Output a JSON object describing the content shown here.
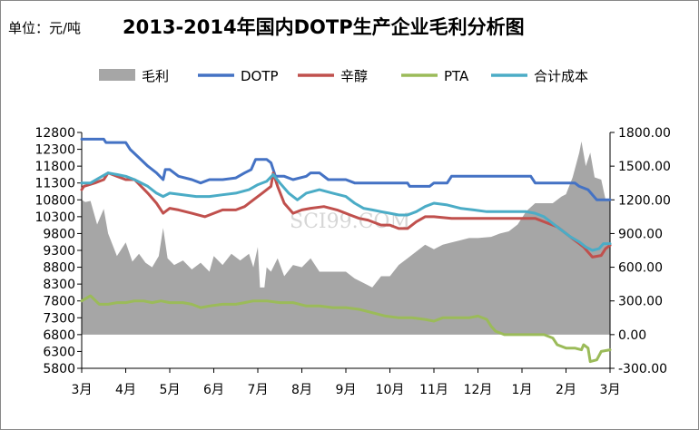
{
  "header": {
    "unit": "单位：元/吨",
    "title": "2013-2014年国内DOTP生产企业毛利分析图"
  },
  "watermark": {
    "text": "SCI99.COM"
  },
  "chart_data": {
    "type": "line",
    "title": "2013-2014年国内DOTP生产企业毛利分析图",
    "unit": "单位：元/吨",
    "legend_position": "top",
    "grid": false,
    "x_labels": [
      "3月",
      "4月",
      "5月",
      "6月",
      "7月",
      "8月",
      "9月",
      "10月",
      "11月",
      "12月",
      "1月",
      "2月",
      "3月"
    ],
    "y_left": {
      "ticks": [
        5800,
        6300,
        6800,
        7300,
        7800,
        8300,
        8800,
        9300,
        9800,
        10300,
        10800,
        11300,
        11800,
        12300,
        12800
      ],
      "range": [
        5800,
        12800
      ]
    },
    "y_right": {
      "ticks": [
        "-300.00",
        "0.00",
        "300.00",
        "600.00",
        "900.00",
        "1200.00",
        "1500.00",
        "1800.00"
      ],
      "range": [
        -300,
        1800
      ]
    },
    "series": [
      {
        "name": "毛利",
        "kind": "area",
        "axis": "right",
        "color": "#a6a6a6",
        "points": [
          [
            0,
            1200
          ],
          [
            0.08,
            1180
          ],
          [
            0.2,
            1190
          ],
          [
            0.35,
            980
          ],
          [
            0.5,
            1120
          ],
          [
            0.6,
            900
          ],
          [
            0.8,
            700
          ],
          [
            1.0,
            820
          ],
          [
            1.15,
            650
          ],
          [
            1.3,
            720
          ],
          [
            1.45,
            640
          ],
          [
            1.6,
            600
          ],
          [
            1.75,
            700
          ],
          [
            1.85,
            950
          ],
          [
            1.95,
            680
          ],
          [
            2.1,
            620
          ],
          [
            2.3,
            660
          ],
          [
            2.5,
            580
          ],
          [
            2.7,
            640
          ],
          [
            2.9,
            560
          ],
          [
            3.0,
            700
          ],
          [
            3.2,
            620
          ],
          [
            3.4,
            720
          ],
          [
            3.6,
            660
          ],
          [
            3.8,
            720
          ],
          [
            3.9,
            600
          ],
          [
            4.0,
            780
          ],
          [
            4.05,
            420
          ],
          [
            4.15,
            420
          ],
          [
            4.2,
            600
          ],
          [
            4.3,
            560
          ],
          [
            4.45,
            680
          ],
          [
            4.6,
            520
          ],
          [
            4.8,
            620
          ],
          [
            5.0,
            600
          ],
          [
            5.2,
            680
          ],
          [
            5.4,
            560
          ],
          [
            5.6,
            560
          ],
          [
            5.8,
            560
          ],
          [
            6.0,
            560
          ],
          [
            6.2,
            500
          ],
          [
            6.4,
            460
          ],
          [
            6.6,
            420
          ],
          [
            6.8,
            520
          ],
          [
            7.0,
            520
          ],
          [
            7.2,
            620
          ],
          [
            7.4,
            680
          ],
          [
            7.6,
            740
          ],
          [
            7.8,
            800
          ],
          [
            8.0,
            760
          ],
          [
            8.2,
            800
          ],
          [
            8.4,
            820
          ],
          [
            8.6,
            840
          ],
          [
            8.8,
            860
          ],
          [
            9.0,
            860
          ],
          [
            9.3,
            870
          ],
          [
            9.5,
            900
          ],
          [
            9.7,
            920
          ],
          [
            9.9,
            980
          ],
          [
            10.1,
            1100
          ],
          [
            10.3,
            1170
          ],
          [
            10.5,
            1170
          ],
          [
            10.7,
            1170
          ],
          [
            10.9,
            1230
          ],
          [
            11.0,
            1250
          ],
          [
            11.15,
            1400
          ],
          [
            11.3,
            1620
          ],
          [
            11.35,
            1720
          ],
          [
            11.45,
            1500
          ],
          [
            11.55,
            1620
          ],
          [
            11.65,
            1400
          ],
          [
            11.8,
            1380
          ],
          [
            11.9,
            1200
          ],
          [
            12.0,
            1200
          ]
        ]
      },
      {
        "name": "DOTP",
        "kind": "line",
        "axis": "left",
        "color": "#4472c4",
        "points": [
          [
            0,
            12600
          ],
          [
            0.5,
            12600
          ],
          [
            0.55,
            12500
          ],
          [
            1.0,
            12500
          ],
          [
            1.1,
            12300
          ],
          [
            1.3,
            12050
          ],
          [
            1.5,
            11800
          ],
          [
            1.7,
            11600
          ],
          [
            1.85,
            11400
          ],
          [
            1.9,
            11700
          ],
          [
            2.0,
            11700
          ],
          [
            2.2,
            11500
          ],
          [
            2.5,
            11400
          ],
          [
            2.7,
            11300
          ],
          [
            2.9,
            11400
          ],
          [
            3.2,
            11400
          ],
          [
            3.5,
            11450
          ],
          [
            3.7,
            11600
          ],
          [
            3.85,
            11700
          ],
          [
            3.95,
            12000
          ],
          [
            4.2,
            12000
          ],
          [
            4.3,
            11900
          ],
          [
            4.4,
            11500
          ],
          [
            4.6,
            11500
          ],
          [
            4.8,
            11400
          ],
          [
            5.1,
            11500
          ],
          [
            5.2,
            11600
          ],
          [
            5.4,
            11600
          ],
          [
            5.6,
            11400
          ],
          [
            6.0,
            11400
          ],
          [
            6.2,
            11300
          ],
          [
            7.4,
            11300
          ],
          [
            7.45,
            11200
          ],
          [
            7.9,
            11200
          ],
          [
            8.0,
            11300
          ],
          [
            8.3,
            11300
          ],
          [
            8.4,
            11500
          ],
          [
            10.2,
            11500
          ],
          [
            10.3,
            11300
          ],
          [
            11.2,
            11300
          ],
          [
            11.3,
            11200
          ],
          [
            11.5,
            11100
          ],
          [
            11.7,
            10800
          ],
          [
            12.0,
            10800
          ]
        ]
      },
      {
        "name": "辛醇",
        "kind": "line",
        "axis": "left",
        "color": "#c0504d",
        "points": [
          [
            0,
            11100
          ],
          [
            0.05,
            11200
          ],
          [
            0.3,
            11300
          ],
          [
            0.5,
            11400
          ],
          [
            0.6,
            11600
          ],
          [
            0.8,
            11500
          ],
          [
            1.0,
            11400
          ],
          [
            1.2,
            11400
          ],
          [
            1.5,
            11000
          ],
          [
            1.7,
            10700
          ],
          [
            1.85,
            10400
          ],
          [
            2.0,
            10550
          ],
          [
            2.2,
            10500
          ],
          [
            2.5,
            10400
          ],
          [
            2.8,
            10300
          ],
          [
            3.0,
            10400
          ],
          [
            3.2,
            10500
          ],
          [
            3.5,
            10500
          ],
          [
            3.7,
            10600
          ],
          [
            3.9,
            10800
          ],
          [
            4.1,
            11000
          ],
          [
            4.3,
            11200
          ],
          [
            4.35,
            11600
          ],
          [
            4.45,
            11200
          ],
          [
            4.6,
            10700
          ],
          [
            4.8,
            10400
          ],
          [
            5.0,
            10500
          ],
          [
            5.2,
            10550
          ],
          [
            5.5,
            10600
          ],
          [
            5.8,
            10500
          ],
          [
            6.1,
            10350
          ],
          [
            6.3,
            10250
          ],
          [
            6.5,
            10200
          ],
          [
            6.8,
            10050
          ],
          [
            7.0,
            10050
          ],
          [
            7.2,
            9950
          ],
          [
            7.4,
            9950
          ],
          [
            7.6,
            10150
          ],
          [
            7.8,
            10300
          ],
          [
            8.0,
            10300
          ],
          [
            8.4,
            10250
          ],
          [
            9.0,
            10250
          ],
          [
            9.2,
            10250
          ],
          [
            9.6,
            10250
          ],
          [
            10.0,
            10250
          ],
          [
            10.3,
            10250
          ],
          [
            10.6,
            10100
          ],
          [
            10.8,
            10000
          ],
          [
            11.0,
            9800
          ],
          [
            11.2,
            9600
          ],
          [
            11.3,
            9500
          ],
          [
            11.4,
            9400
          ],
          [
            11.6,
            9100
          ],
          [
            11.8,
            9150
          ],
          [
            11.9,
            9350
          ],
          [
            12.0,
            9450
          ]
        ]
      },
      {
        "name": "PTA",
        "kind": "line",
        "axis": "left",
        "color": "#9bbb59",
        "points": [
          [
            0,
            7800
          ],
          [
            0.2,
            7950
          ],
          [
            0.4,
            7700
          ],
          [
            0.6,
            7700
          ],
          [
            0.8,
            7750
          ],
          [
            1.0,
            7750
          ],
          [
            1.2,
            7800
          ],
          [
            1.4,
            7800
          ],
          [
            1.6,
            7750
          ],
          [
            1.8,
            7800
          ],
          [
            2.0,
            7750
          ],
          [
            2.3,
            7750
          ],
          [
            2.5,
            7700
          ],
          [
            2.7,
            7600
          ],
          [
            2.9,
            7650
          ],
          [
            3.2,
            7700
          ],
          [
            3.5,
            7700
          ],
          [
            3.7,
            7750
          ],
          [
            3.9,
            7800
          ],
          [
            4.2,
            7800
          ],
          [
            4.5,
            7750
          ],
          [
            4.8,
            7750
          ],
          [
            5.1,
            7650
          ],
          [
            5.4,
            7650
          ],
          [
            5.7,
            7600
          ],
          [
            6.0,
            7600
          ],
          [
            6.3,
            7550
          ],
          [
            6.6,
            7450
          ],
          [
            6.9,
            7350
          ],
          [
            7.2,
            7300
          ],
          [
            7.5,
            7300
          ],
          [
            7.8,
            7250
          ],
          [
            8.0,
            7200
          ],
          [
            8.2,
            7300
          ],
          [
            8.5,
            7300
          ],
          [
            8.8,
            7300
          ],
          [
            9.0,
            7350
          ],
          [
            9.2,
            7250
          ],
          [
            9.3,
            7050
          ],
          [
            9.4,
            6900
          ],
          [
            9.6,
            6800
          ],
          [
            9.8,
            6800
          ],
          [
            10.0,
            6800
          ],
          [
            10.2,
            6800
          ],
          [
            10.5,
            6800
          ],
          [
            10.7,
            6700
          ],
          [
            10.8,
            6500
          ],
          [
            11.0,
            6400
          ],
          [
            11.2,
            6400
          ],
          [
            11.35,
            6350
          ],
          [
            11.4,
            6500
          ],
          [
            11.5,
            6400
          ],
          [
            11.55,
            6000
          ],
          [
            11.7,
            6050
          ],
          [
            11.8,
            6300
          ],
          [
            12.0,
            6350
          ]
        ]
      },
      {
        "name": "合计成本",
        "kind": "line",
        "axis": "left",
        "color": "#4bacc6",
        "points": [
          [
            0,
            11300
          ],
          [
            0.2,
            11300
          ],
          [
            0.4,
            11450
          ],
          [
            0.6,
            11600
          ],
          [
            0.8,
            11550
          ],
          [
            1.0,
            11500
          ],
          [
            1.2,
            11400
          ],
          [
            1.5,
            11200
          ],
          [
            1.7,
            11000
          ],
          [
            1.85,
            10900
          ],
          [
            2.0,
            11000
          ],
          [
            2.3,
            10950
          ],
          [
            2.6,
            10900
          ],
          [
            2.9,
            10900
          ],
          [
            3.2,
            10950
          ],
          [
            3.5,
            11000
          ],
          [
            3.8,
            11100
          ],
          [
            4.0,
            11250
          ],
          [
            4.2,
            11350
          ],
          [
            4.35,
            11550
          ],
          [
            4.5,
            11300
          ],
          [
            4.7,
            11000
          ],
          [
            4.9,
            10800
          ],
          [
            5.1,
            11000
          ],
          [
            5.4,
            11100
          ],
          [
            5.7,
            11000
          ],
          [
            6.0,
            10900
          ],
          [
            6.2,
            10700
          ],
          [
            6.4,
            10550
          ],
          [
            6.6,
            10500
          ],
          [
            6.8,
            10450
          ],
          [
            7.0,
            10400
          ],
          [
            7.2,
            10350
          ],
          [
            7.4,
            10350
          ],
          [
            7.6,
            10450
          ],
          [
            7.8,
            10600
          ],
          [
            8.0,
            10700
          ],
          [
            8.3,
            10650
          ],
          [
            8.6,
            10550
          ],
          [
            8.9,
            10500
          ],
          [
            9.2,
            10450
          ],
          [
            9.5,
            10450
          ],
          [
            9.8,
            10450
          ],
          [
            10.1,
            10450
          ],
          [
            10.3,
            10400
          ],
          [
            10.5,
            10300
          ],
          [
            10.7,
            10100
          ],
          [
            10.9,
            9900
          ],
          [
            11.1,
            9700
          ],
          [
            11.3,
            9550
          ],
          [
            11.45,
            9400
          ],
          [
            11.6,
            9300
          ],
          [
            11.75,
            9350
          ],
          [
            11.85,
            9500
          ],
          [
            12.0,
            9500
          ]
        ]
      }
    ]
  }
}
